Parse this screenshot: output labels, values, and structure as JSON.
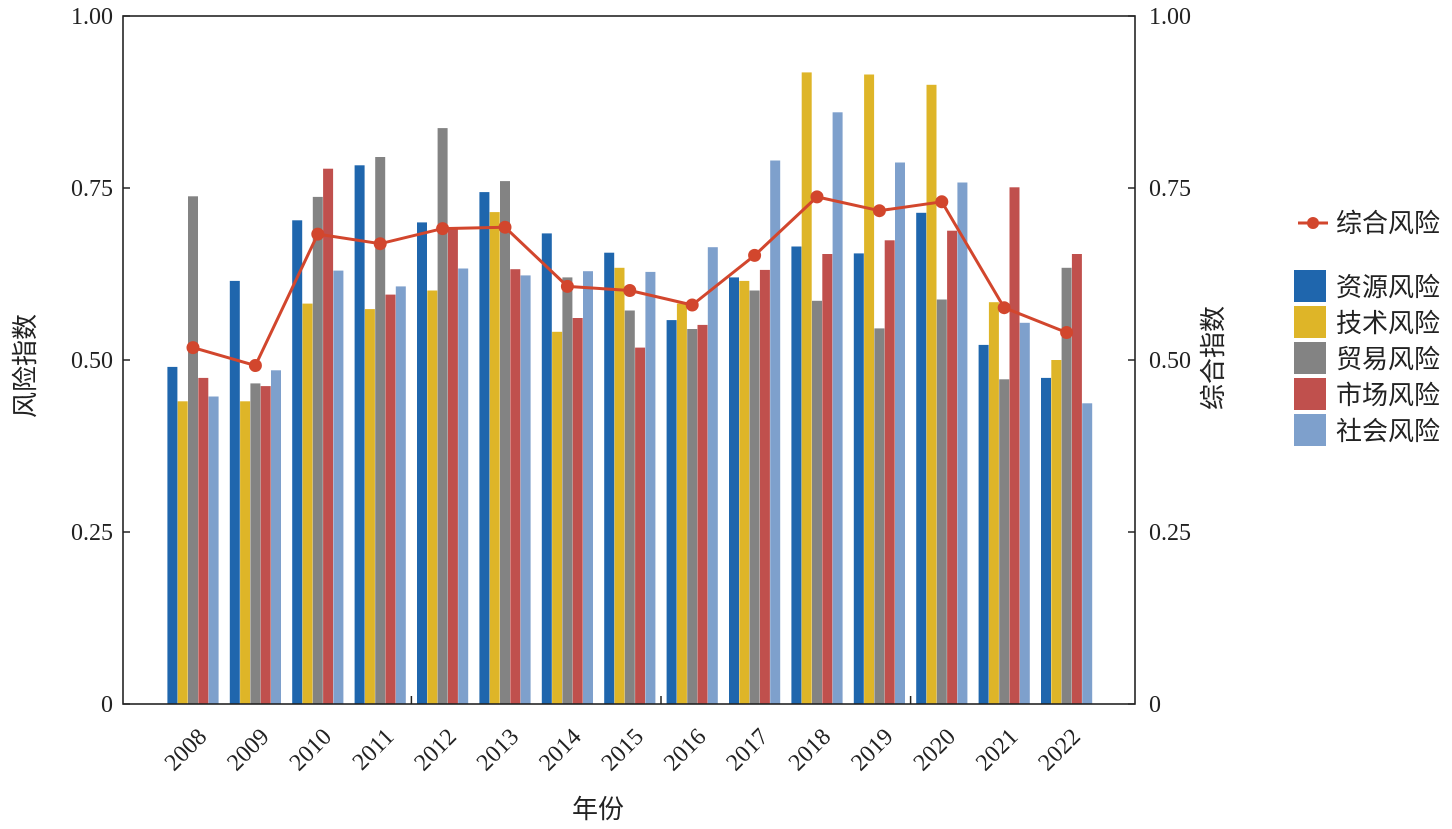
{
  "chart_data": {
    "type": "bar",
    "title": "",
    "xlabel": "年份",
    "ylabel": "风险指数",
    "y2label": "综合指数",
    "ylim": [
      0,
      1.0
    ],
    "y2lim": [
      0,
      1.0
    ],
    "ytick_labels": [
      "0",
      "0.25",
      "0.50",
      "0.75",
      "1.00"
    ],
    "y2tick_labels": [
      "0",
      "0.25",
      "0.50",
      "0.75",
      "1.00"
    ],
    "categories": [
      "2008",
      "2009",
      "2010",
      "2011",
      "2012",
      "2013",
      "2014",
      "2015",
      "2016",
      "2017",
      "2018",
      "2019",
      "2020",
      "2021",
      "2022"
    ],
    "series": [
      {
        "name": "资源风险",
        "color": "#1f66ad",
        "values": [
          0.49,
          0.615,
          0.703,
          0.783,
          0.7,
          0.744,
          0.684,
          0.656,
          0.558,
          0.62,
          0.665,
          0.655,
          0.714,
          0.522,
          0.474
        ]
      },
      {
        "name": "技术风险",
        "color": "#deb528",
        "values": [
          0.44,
          0.44,
          0.582,
          0.574,
          0.601,
          0.715,
          0.541,
          0.634,
          0.582,
          0.615,
          0.918,
          0.915,
          0.9,
          0.584,
          0.5
        ]
      },
      {
        "name": "贸易风险",
        "color": "#838383",
        "values": [
          0.738,
          0.466,
          0.737,
          0.795,
          0.837,
          0.76,
          0.62,
          0.572,
          0.545,
          0.601,
          0.586,
          0.546,
          0.588,
          0.472,
          0.634
        ]
      },
      {
        "name": "市场风险",
        "color": "#c0504d",
        "values": [
          0.474,
          0.462,
          0.778,
          0.595,
          0.692,
          0.632,
          0.561,
          0.518,
          0.551,
          0.631,
          0.654,
          0.674,
          0.688,
          0.751,
          0.654
        ]
      },
      {
        "name": "社会风险",
        "color": "#7ea0cc",
        "values": [
          0.447,
          0.485,
          0.63,
          0.607,
          0.633,
          0.623,
          0.629,
          0.628,
          0.664,
          0.79,
          0.86,
          0.787,
          0.758,
          0.554,
          0.437
        ]
      }
    ],
    "line_series": {
      "name": "综合风险",
      "color": "#d2462d",
      "axis": "right",
      "values": [
        0.518,
        0.492,
        0.683,
        0.669,
        0.691,
        0.693,
        0.607,
        0.601,
        0.58,
        0.652,
        0.737,
        0.717,
        0.73,
        0.576,
        0.54
      ]
    },
    "legend_position": "right",
    "grid": false
  }
}
